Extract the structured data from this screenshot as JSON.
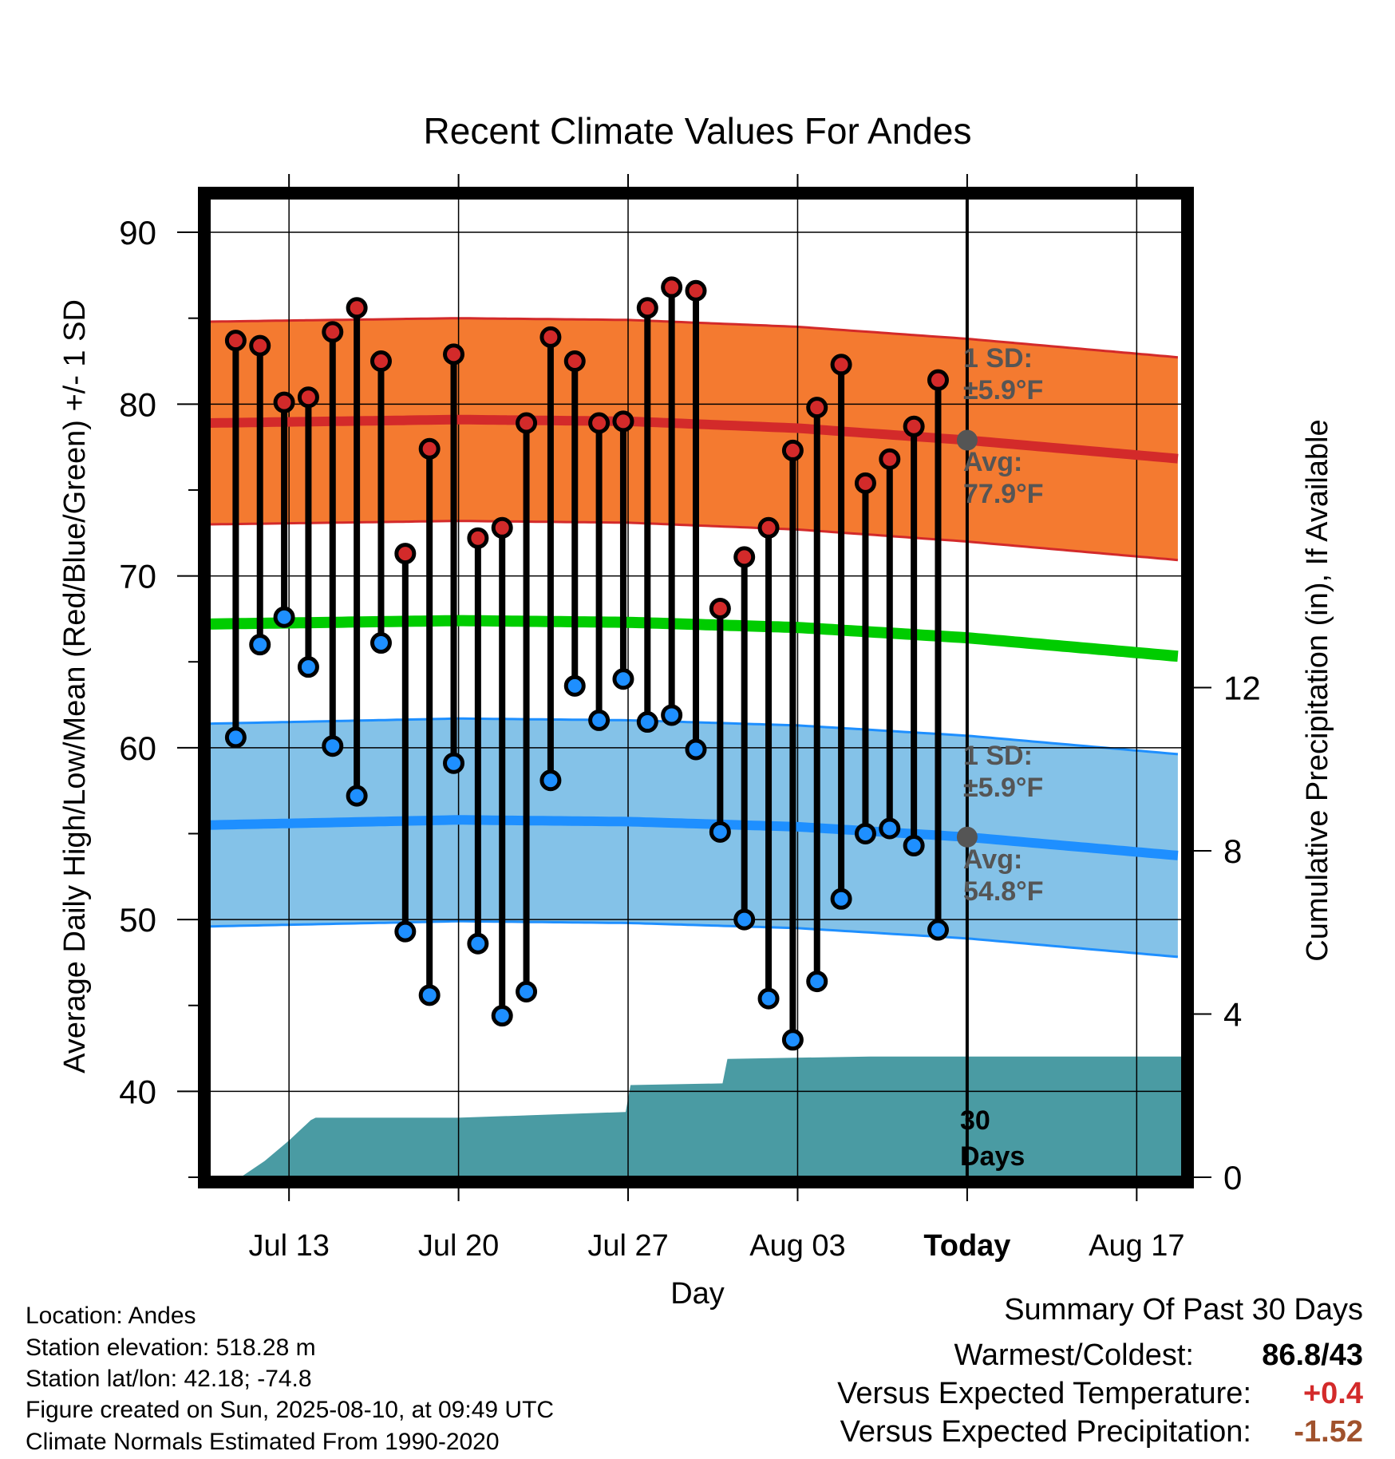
{
  "chart_data": {
    "type": "line",
    "title": "Recent Climate Values For Andes",
    "xlabel": "Day",
    "ylabel": "Average Daily High/Low/Mean (Red/Blue/Green) +/- 1 SD",
    "y2label": "Cumulative Precipitation (in), If Available",
    "ylim": [
      35,
      92
    ],
    "y2lim": [
      0,
      24
    ],
    "y_ticks": [
      40,
      50,
      60,
      70,
      80,
      90
    ],
    "y2_ticks": [
      0,
      4,
      8,
      12
    ],
    "x_ticks": [
      "Jul 13",
      "Jul 20",
      "Jul 27",
      "Aug 03",
      "Today",
      "Aug 17"
    ],
    "x_tick_days": [
      13,
      20,
      27,
      34,
      41,
      48
    ],
    "x_range_days": [
      9.7,
      49.9
    ],
    "today_day": 41,
    "grid": true,
    "highs": [
      {
        "day": 10.8,
        "high": 83.7,
        "low": 60.6
      },
      {
        "day": 11.8,
        "high": 83.4,
        "low": 66.0
      },
      {
        "day": 12.8,
        "high": 80.1,
        "low": 67.6
      },
      {
        "day": 13.8,
        "high": 80.4,
        "low": 64.7
      },
      {
        "day": 14.8,
        "high": 84.2,
        "low": 60.1
      },
      {
        "day": 15.8,
        "high": 85.6,
        "low": 57.2
      },
      {
        "day": 16.8,
        "high": 82.5,
        "low": 66.1
      },
      {
        "day": 17.8,
        "high": 71.3,
        "low": 49.3
      },
      {
        "day": 18.8,
        "high": 77.4,
        "low": 45.6
      },
      {
        "day": 19.8,
        "high": 82.9,
        "low": 59.1
      },
      {
        "day": 20.8,
        "high": 72.2,
        "low": 48.6
      },
      {
        "day": 21.8,
        "high": 72.8,
        "low": 44.4
      },
      {
        "day": 22.8,
        "high": 78.9,
        "low": 45.8
      },
      {
        "day": 23.8,
        "high": 83.9,
        "low": 58.1
      },
      {
        "day": 24.8,
        "high": 82.5,
        "low": 63.6
      },
      {
        "day": 25.8,
        "high": 78.9,
        "low": 61.6
      },
      {
        "day": 26.8,
        "high": 79.0,
        "low": 64.0
      },
      {
        "day": 27.8,
        "high": 85.6,
        "low": 61.5
      },
      {
        "day": 28.8,
        "high": 86.8,
        "low": 61.9
      },
      {
        "day": 29.8,
        "high": 86.6,
        "low": 59.9
      },
      {
        "day": 30.8,
        "high": 68.1,
        "low": 55.1
      },
      {
        "day": 31.8,
        "high": 71.1,
        "low": 50.0
      },
      {
        "day": 32.8,
        "high": 72.8,
        "low": 45.4
      },
      {
        "day": 33.8,
        "high": 77.3,
        "low": 43.0
      },
      {
        "day": 34.8,
        "high": 79.8,
        "low": 46.4
      },
      {
        "day": 35.8,
        "high": 82.3,
        "low": 51.2
      },
      {
        "day": 36.8,
        "high": 75.4,
        "low": 55.0
      },
      {
        "day": 37.8,
        "high": 76.8,
        "low": 55.3
      },
      {
        "day": 38.8,
        "high": 78.7,
        "low": 54.3
      },
      {
        "day": 39.8,
        "high": 81.4,
        "low": 49.4
      }
    ],
    "normal_high": {
      "days": [
        9.7,
        20,
        27,
        34,
        41,
        49.9
      ],
      "avg": [
        78.9,
        79.1,
        79.0,
        78.6,
        77.9,
        76.8
      ],
      "sd": 5.9
    },
    "normal_low": {
      "days": [
        9.7,
        20,
        27,
        34,
        41,
        49.9
      ],
      "avg": [
        55.5,
        55.8,
        55.7,
        55.4,
        54.8,
        53.7
      ],
      "sd": 5.9
    },
    "normal_mean": {
      "days": [
        9.7,
        20,
        27,
        34,
        41,
        49.9
      ],
      "values": [
        67.2,
        67.4,
        67.3,
        67.0,
        66.4,
        65.3
      ]
    },
    "precip_cumulative": {
      "days": [
        9.7,
        11.0,
        12.0,
        13.0,
        13.9,
        14.1,
        20.0,
        26.9,
        27.1,
        30.9,
        31.1,
        37.0,
        49.9
      ],
      "values": [
        0,
        0,
        0.4,
        0.9,
        1.4,
        1.46,
        1.46,
        1.6,
        2.26,
        2.3,
        2.9,
        2.96,
        2.96
      ]
    },
    "colors": {
      "high_band": "#f47a30",
      "high_line": "#d32a2a",
      "low_band": "#84c2e8",
      "low_line": "#1e8fff",
      "mean_line": "#00cc00",
      "precip_fill": "#4a9ba3",
      "high_dot": "#d32a2a",
      "low_dot": "#1e8fff",
      "annotation": "#555555"
    }
  },
  "annotations": {
    "high_sd_label": "1 SD:",
    "high_sd_value": "±5.9°F",
    "high_avg_label": "Avg:",
    "high_avg_value": "77.9°F",
    "low_sd_label": "1 SD:",
    "low_sd_value": "±5.9°F",
    "low_avg_label": "Avg:",
    "low_avg_value": "54.8°F",
    "days_line1": "30",
    "days_line2": "Days"
  },
  "info": {
    "location": "Location: Andes",
    "elevation": "Station elevation: 518.28 m",
    "latlon": "Station lat/lon: 42.18; -74.8",
    "created": "Figure created on Sun, 2025-08-10, at 09:49 UTC",
    "normals": "Climate Normals Estimated From 1990-2020"
  },
  "summary": {
    "title": "Summary Of Past 30 Days",
    "warm_cold_label": "Warmest/Coldest:",
    "warm_cold_value": "86.8/43",
    "temp_label": "Versus Expected Temperature:",
    "temp_value": "+0.4",
    "temp_color": "#d32a2a",
    "precip_label": "Versus Expected Precipitation:",
    "precip_value": "-1.52",
    "precip_color": "#a0522d"
  }
}
